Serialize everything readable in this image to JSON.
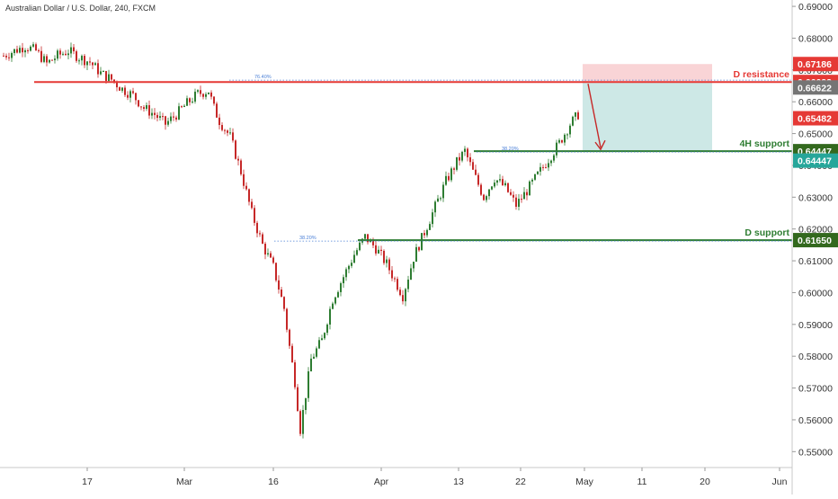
{
  "header": {
    "title": "Australian Dollar / U.S. Dollar, 240, FXCM"
  },
  "chart_data": {
    "type": "candlestick",
    "ylim": [
      0.545,
      0.692
    ],
    "y_ticks": [
      0.69,
      0.68,
      0.67,
      0.66,
      0.65,
      0.64,
      0.63,
      0.62,
      0.61,
      0.6,
      0.59,
      0.58,
      0.57,
      0.56,
      0.55
    ],
    "x_ticks": [
      "17",
      "Mar",
      "16",
      "Apr",
      "13",
      "22",
      "May",
      "11",
      "20",
      "Jun"
    ],
    "colors": {
      "up": "#2e7d32",
      "down": "#c62828",
      "resistance": "#e53935",
      "support": "#2e7d32",
      "fib": "#4a7fd6",
      "target_zone": "#cde8e6",
      "stop_zone": "#f9d4d6"
    },
    "levels": [
      {
        "label": "D resistance",
        "price": 0.66622,
        "color": "#e53935"
      },
      {
        "label": "4H support",
        "price": 0.64447,
        "color": "#2e7d32"
      },
      {
        "label": "D support",
        "price": 0.6165,
        "color": "#2e7d32"
      }
    ],
    "fib_labels": [
      {
        "text": "76.40%",
        "price": 0.6668
      },
      {
        "text": "38.20%",
        "price": 0.6162
      },
      {
        "text": "38.20%",
        "price": 0.6442
      }
    ],
    "zones": [
      {
        "kind": "stop",
        "from": 0.67186,
        "to": 0.66622
      },
      {
        "kind": "target",
        "from": 0.66622,
        "to": 0.64447
      }
    ],
    "price_labels": [
      {
        "text": "0.67186",
        "price": 0.67186,
        "color": "#e53935"
      },
      {
        "text": "0.66622",
        "price": 0.66622,
        "color": "#e53935"
      },
      {
        "text": "0.66622",
        "price": 0.6645,
        "color": "#757575"
      },
      {
        "text": "0.65482",
        "price": 0.65482,
        "color": "#e53935"
      },
      {
        "text": "0.64447",
        "price": 0.64447,
        "color": "#33691e"
      },
      {
        "text": "0.64447",
        "price": 0.6415,
        "color": "#26a69a"
      },
      {
        "text": "0.61650",
        "price": 0.6165,
        "color": "#33691e"
      }
    ],
    "price_path": [
      [
        0,
        0.6745
      ],
      [
        4,
        0.676
      ],
      [
        8,
        0.6775
      ],
      [
        12,
        0.676
      ],
      [
        16,
        0.672
      ],
      [
        20,
        0.6745
      ],
      [
        24,
        0.676
      ],
      [
        28,
        0.674
      ],
      [
        32,
        0.6725
      ],
      [
        36,
        0.669
      ],
      [
        40,
        0.667
      ],
      [
        44,
        0.664
      ],
      [
        48,
        0.662
      ],
      [
        52,
        0.658
      ],
      [
        56,
        0.656
      ],
      [
        60,
        0.653
      ],
      [
        64,
        0.656
      ],
      [
        68,
        0.6595
      ],
      [
        72,
        0.6625
      ],
      [
        76,
        0.6635
      ],
      [
        78,
        0.658
      ],
      [
        80,
        0.654
      ],
      [
        84,
        0.649
      ],
      [
        88,
        0.638
      ],
      [
        92,
        0.625
      ],
      [
        96,
        0.615
      ],
      [
        100,
        0.608
      ],
      [
        104,
        0.595
      ],
      [
        106,
        0.583
      ],
      [
        108,
        0.572
      ],
      [
        110,
        0.557
      ],
      [
        112,
        0.568
      ],
      [
        114,
        0.579
      ],
      [
        118,
        0.585
      ],
      [
        122,
        0.598
      ],
      [
        126,
        0.605
      ],
      [
        130,
        0.612
      ],
      [
        134,
        0.6175
      ],
      [
        138,
        0.614
      ],
      [
        142,
        0.609
      ],
      [
        145,
        0.604
      ],
      [
        148,
        0.599
      ],
      [
        152,
        0.611
      ],
      [
        156,
        0.619
      ],
      [
        160,
        0.627
      ],
      [
        164,
        0.635
      ],
      [
        168,
        0.641
      ],
      [
        171,
        0.6445
      ],
      [
        174,
        0.638
      ],
      [
        178,
        0.63
      ],
      [
        182,
        0.636
      ],
      [
        186,
        0.633
      ],
      [
        190,
        0.6275
      ],
      [
        194,
        0.632
      ],
      [
        198,
        0.637
      ],
      [
        202,
        0.642
      ],
      [
        206,
        0.647
      ],
      [
        210,
        0.653
      ],
      [
        213,
        0.656
      ]
    ]
  }
}
